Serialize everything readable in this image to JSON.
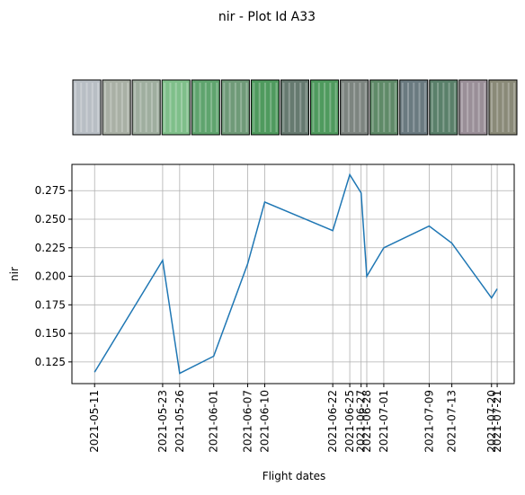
{
  "chart_data": {
    "type": "line",
    "title": "nir - Plot Id A33",
    "x_label": "Flight dates",
    "y_label": "nir",
    "x": [
      "2021-05-11",
      "2021-05-23",
      "2021-05-26",
      "2021-06-01",
      "2021-06-07",
      "2021-06-10",
      "2021-06-22",
      "2021-06-25",
      "2021-06-27",
      "2021-06-28",
      "2021-07-01",
      "2021-07-09",
      "2021-07-13",
      "2021-07-20",
      "2021-07-21"
    ],
    "series": [
      {
        "name": "nir",
        "color": "#1f77b4",
        "values": [
          0.116,
          0.214,
          0.115,
          0.13,
          0.211,
          0.265,
          0.24,
          0.289,
          0.273,
          0.2,
          0.225,
          0.244,
          0.229,
          0.181,
          0.189
        ]
      }
    ],
    "xlim": [
      "2021-05-07",
      "2021-07-24"
    ],
    "xticks": [
      "2021-05-11",
      "2021-05-23",
      "2021-05-26",
      "2021-06-01",
      "2021-06-07",
      "2021-06-10",
      "2021-06-22",
      "2021-06-25",
      "2021-06-27",
      "2021-06-28",
      "2021-07-01",
      "2021-07-09",
      "2021-07-13",
      "2021-07-20",
      "2021-07-21"
    ],
    "ylim": [
      0.106,
      0.298
    ],
    "yticks": [
      {
        "value": 0.125,
        "label": "0.125"
      },
      {
        "value": 0.15,
        "label": "0.150"
      },
      {
        "value": 0.175,
        "label": "0.175"
      },
      {
        "value": 0.2,
        "label": "0.200"
      },
      {
        "value": 0.225,
        "label": "0.225"
      },
      {
        "value": 0.25,
        "label": "0.250"
      },
      {
        "value": 0.275,
        "label": "0.275"
      }
    ],
    "grid": true
  }
}
